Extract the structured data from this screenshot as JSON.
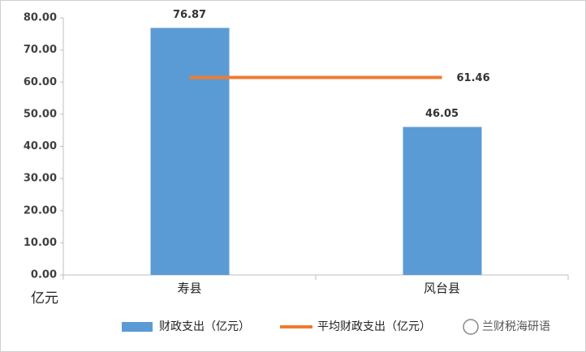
{
  "chart_data": {
    "type": "bar",
    "y_unit": "亿元",
    "categories": [
      "寿县",
      "风台县"
    ],
    "series": [
      {
        "name": "财政支出（亿元）",
        "type": "bar",
        "color": "#5b9bd5",
        "values": [
          76.87,
          46.05
        ]
      },
      {
        "name": "平均财政支出（亿元）",
        "type": "line",
        "color": "#ed7d31",
        "values": [
          61.46,
          61.46
        ],
        "value_labels": [
          null,
          "61.46"
        ]
      }
    ],
    "ylim": [
      0,
      80
    ],
    "yticks": [
      {
        "value": 0,
        "label": "0.00"
      },
      {
        "value": 10,
        "label": "10.00"
      },
      {
        "value": 20,
        "label": "20.00"
      },
      {
        "value": 30,
        "label": "30.00"
      },
      {
        "value": 40,
        "label": "40.00"
      },
      {
        "value": 50,
        "label": "50.00"
      },
      {
        "value": 60,
        "label": "60.00"
      },
      {
        "value": 70,
        "label": "70.00"
      },
      {
        "value": 80,
        "label": "80.00"
      }
    ],
    "grid": false,
    "legend": "bottom",
    "watermark": "兰财税海研语"
  }
}
